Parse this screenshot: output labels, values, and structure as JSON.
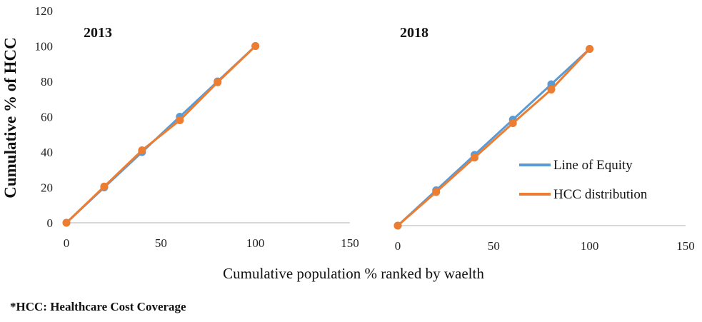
{
  "chart_data": [
    {
      "type": "line",
      "title": "2013",
      "xlim": [
        0,
        150
      ],
      "ylim": [
        0,
        120
      ],
      "x_ticks": [
        "0",
        "50",
        "100",
        "150"
      ],
      "y_ticks": [
        "0",
        "20",
        "40",
        "60",
        "80",
        "100",
        "120"
      ],
      "ylabel": "Cumulative % of  HCC",
      "series": [
        {
          "name": "Line of Equity",
          "x": [
            0,
            20,
            40,
            60,
            80,
            100
          ],
          "values": [
            0,
            20,
            40,
            60,
            80,
            100
          ]
        },
        {
          "name": "HCC distribution",
          "x": [
            0,
            20,
            40,
            60,
            80,
            100
          ],
          "values": [
            0,
            20.5,
            41,
            58,
            79.5,
            100
          ]
        }
      ]
    },
    {
      "type": "line",
      "title": "2018",
      "xlim": [
        0,
        150
      ],
      "ylim": [
        0,
        120
      ],
      "x_ticks": [
        "0",
        "50",
        "100",
        "150"
      ],
      "series": [
        {
          "name": "Line of Equity",
          "x": [
            0,
            20,
            40,
            60,
            80,
            100
          ],
          "values": [
            0,
            20,
            40,
            60,
            80,
            100
          ]
        },
        {
          "name": "HCC distribution",
          "x": [
            0,
            20,
            40,
            60,
            80,
            100
          ],
          "values": [
            0,
            19,
            38.5,
            58,
            77,
            100
          ]
        }
      ],
      "legend_position": "right"
    }
  ],
  "xlabel": "Cumulative population % ranked by waelth",
  "footnote": "*HCC: Healthcare Cost Coverage",
  "colors": {
    "Line of Equity": "#5b9bd5",
    "HCC distribution": "#ed7d31"
  }
}
